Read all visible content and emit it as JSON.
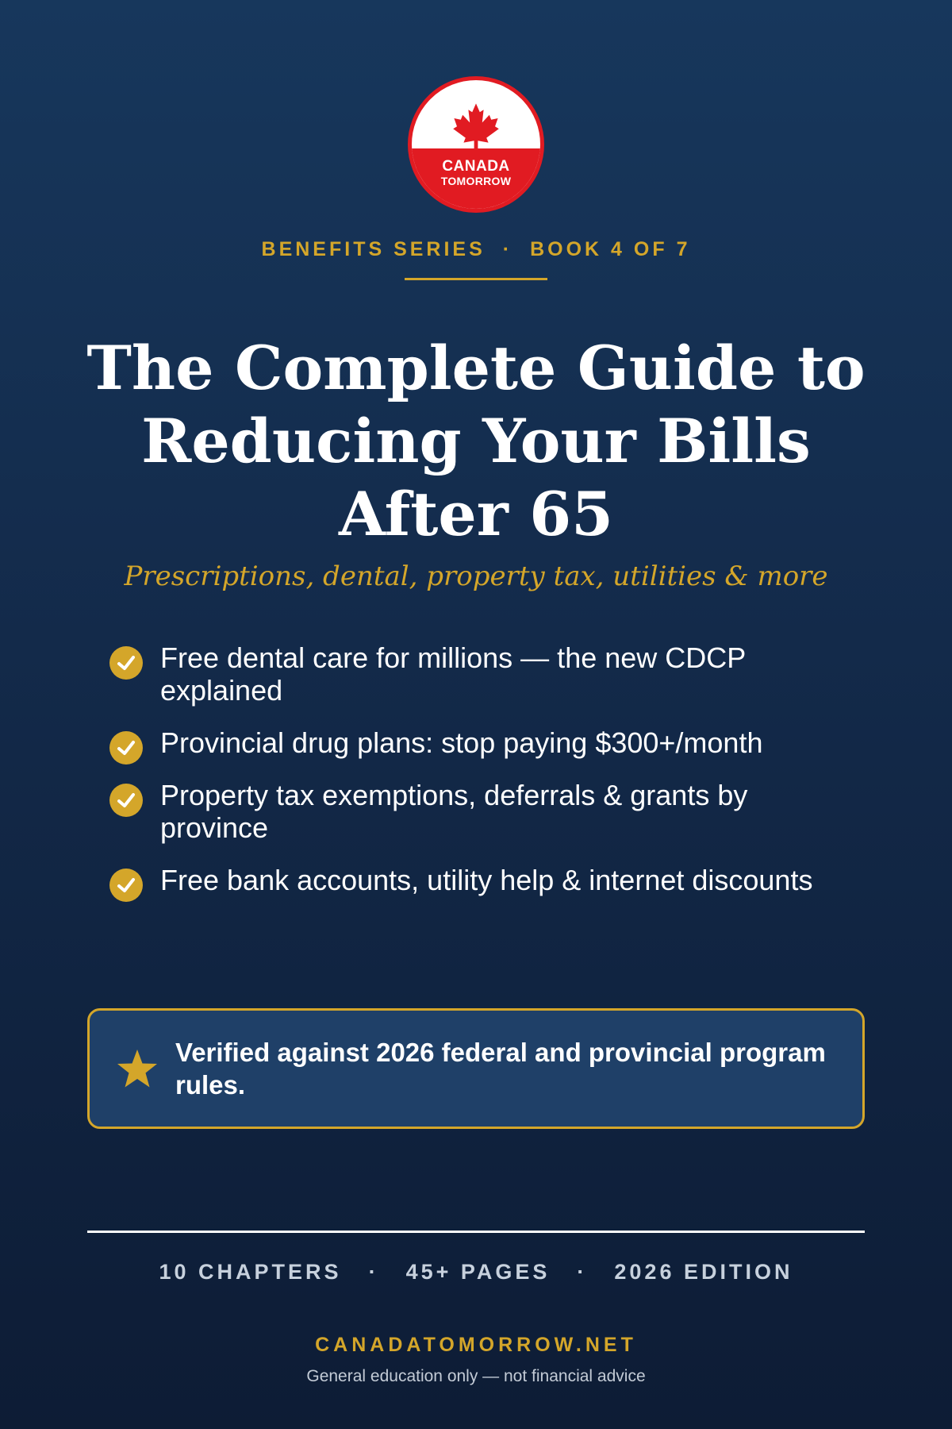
{
  "logo": {
    "line1": "CANADA",
    "line2": "TOMORROW",
    "icon": "maple-leaf-icon",
    "brand_red": "#e11b22"
  },
  "series": {
    "name": "BENEFITS SERIES",
    "separator": "·",
    "book": "BOOK 4 OF 7"
  },
  "title": {
    "line1": "The Complete Guide to",
    "line2": "Reducing Your Bills",
    "line3": "After 65"
  },
  "subtitle": "Prescriptions, dental, property tax, utilities & more",
  "features": [
    {
      "text": "Free dental care for millions — the new CDCP explained",
      "icon": "check-circle-icon"
    },
    {
      "text": "Provincial drug plans: stop paying $300+/month",
      "icon": "check-circle-icon"
    },
    {
      "text": "Property tax exemptions, deferrals & grants by province",
      "icon": "check-circle-icon"
    },
    {
      "text": "Free bank accounts, utility help & internet discounts",
      "icon": "check-circle-icon"
    }
  ],
  "verified": {
    "icon": "star-icon",
    "text": "Verified against 2026 federal and provincial program rules."
  },
  "stats": {
    "chapters": "10 CHAPTERS",
    "pages": "45+ PAGES",
    "edition": "2026 EDITION",
    "separator": "·"
  },
  "footer": {
    "website": "CANADATOMORROW.NET",
    "disclaimer": "General education only — not financial advice"
  },
  "colors": {
    "gold": "#d4a62a",
    "navy_top": "#17375c",
    "navy_bottom": "#0d1c35",
    "box_fill": "#1f4068"
  }
}
